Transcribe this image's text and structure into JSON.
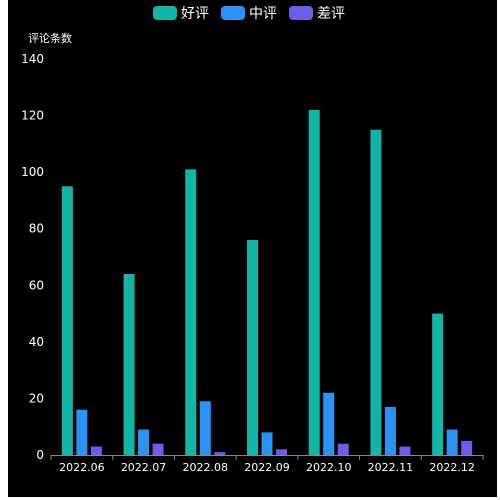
{
  "chart_data": {
    "type": "bar",
    "ylabel": "评论条数",
    "ylim": [
      0,
      140
    ],
    "yticks": [
      0,
      20,
      40,
      60,
      80,
      100,
      120,
      140
    ],
    "categories": [
      "2022.06",
      "2022.07",
      "2022.08",
      "2022.09",
      "2022.10",
      "2022.11",
      "2022.12"
    ],
    "series": [
      {
        "name": "好评",
        "color": "#13b5a6",
        "values": [
          95,
          64,
          101,
          76,
          122,
          115,
          50
        ]
      },
      {
        "name": "中评",
        "color": "#2b93f5",
        "values": [
          16,
          9,
          19,
          8,
          22,
          17,
          9
        ]
      },
      {
        "name": "差评",
        "color": "#6b5de8",
        "values": [
          3,
          4,
          1,
          2,
          4,
          3,
          5
        ]
      }
    ],
    "legend": "top-center",
    "grid": false
  }
}
